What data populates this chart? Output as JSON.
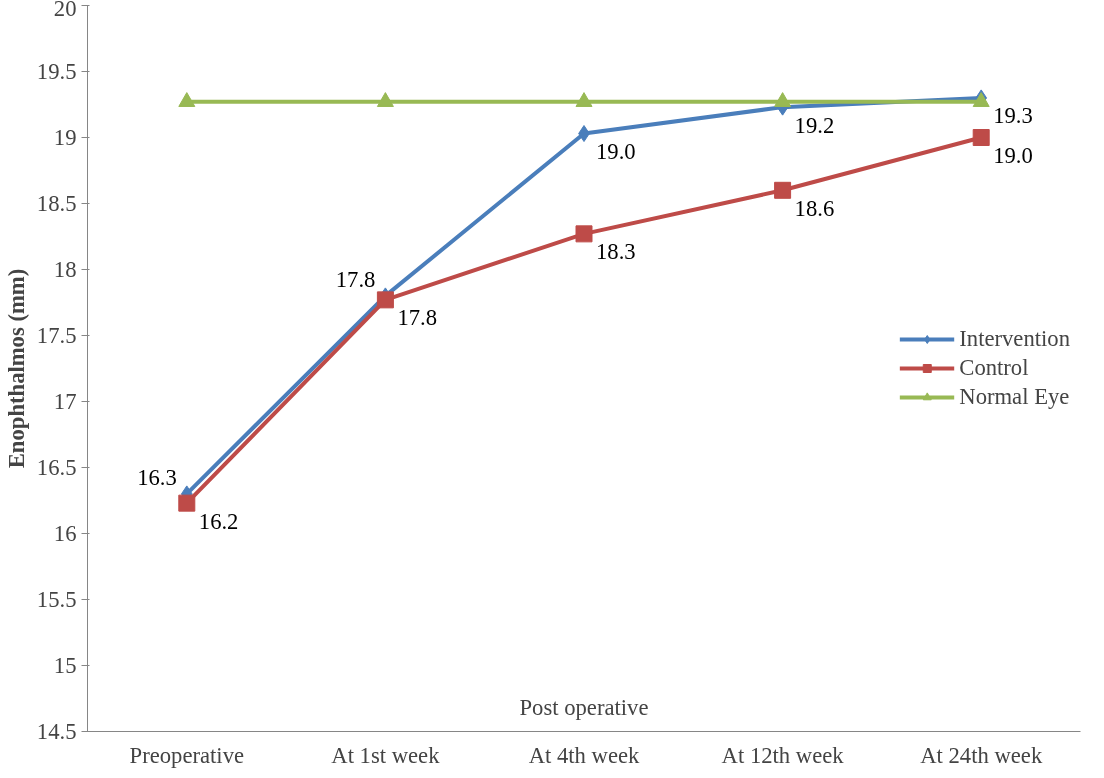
{
  "chart_data": {
    "type": "line",
    "xlabel": "Post operative",
    "ylabel": "Enophthalmos (mm)",
    "categories": [
      "Preoperative",
      "At 1st week",
      "At 4th week",
      "At 12th week",
      "At 24th week"
    ],
    "ylim": [
      14.5,
      20
    ],
    "yticks": [
      14.5,
      15,
      15.5,
      16,
      16.5,
      17,
      17.5,
      18,
      18.5,
      19,
      19.5,
      20
    ],
    "grid": false,
    "legend": "right",
    "line_style": "solid",
    "series": [
      {
        "name": "Intervention",
        "color": "#4a7ebb",
        "marker": "diamond",
        "values": [
          16.3,
          17.8,
          19.03,
          19.23,
          19.3
        ],
        "value_labels": [
          "16.3",
          "17.8",
          "19.0",
          "19.2",
          "19.3"
        ]
      },
      {
        "name": "Control",
        "color": "#be4b48",
        "marker": "square",
        "values": [
          16.23,
          17.77,
          18.27,
          18.6,
          19.0
        ],
        "value_labels": [
          "16.2",
          "17.8",
          "18.3",
          "18.6",
          "19.0"
        ]
      },
      {
        "name": "Normal Eye",
        "color": "#98b954",
        "marker": "triangle",
        "values": [
          19.27,
          19.27,
          19.27,
          19.27,
          19.27
        ]
      }
    ]
  }
}
